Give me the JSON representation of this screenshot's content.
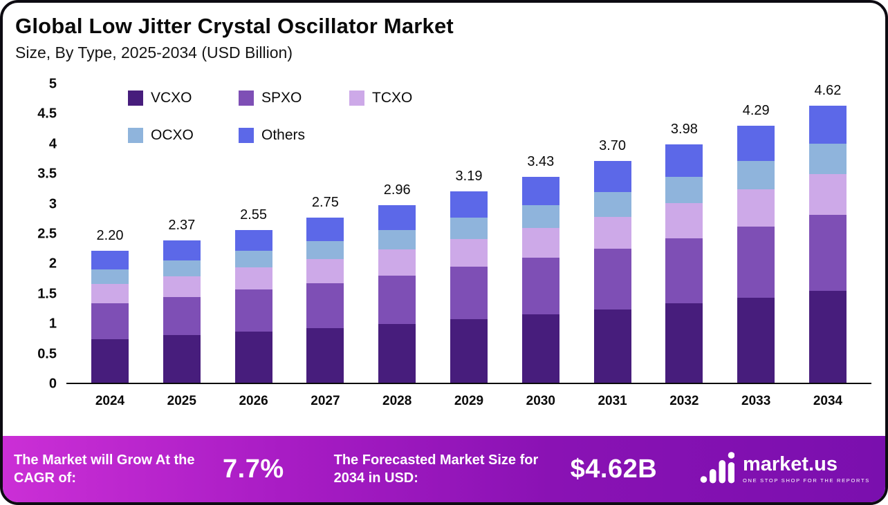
{
  "header": {
    "title": "Global Low Jitter Crystal Oscillator Market",
    "subtitle": "Size, By Type, 2025-2034 (USD Billion)"
  },
  "chart_data": {
    "type": "bar",
    "stacked": true,
    "title": "Global Low Jitter Crystal Oscillator Market Size, By Type, 2025-2034 (USD Billion)",
    "categories": [
      "2024",
      "2025",
      "2026",
      "2027",
      "2028",
      "2029",
      "2030",
      "2031",
      "2032",
      "2033",
      "2034"
    ],
    "totals": [
      2.2,
      2.37,
      2.55,
      2.75,
      2.96,
      3.19,
      3.43,
      3.7,
      3.98,
      4.29,
      4.62
    ],
    "total_labels": [
      "2.20",
      "2.37",
      "2.55",
      "2.75",
      "2.96",
      "3.19",
      "3.43",
      "3.70",
      "3.98",
      "4.29",
      "4.62"
    ],
    "series": [
      {
        "name": "VCXO",
        "color": "#471d7c",
        "values": [
          0.73,
          0.79,
          0.85,
          0.91,
          0.98,
          1.06,
          1.14,
          1.22,
          1.32,
          1.42,
          1.53
        ]
      },
      {
        "name": "SPXO",
        "color": "#7e4fb5",
        "values": [
          0.6,
          0.64,
          0.7,
          0.75,
          0.81,
          0.87,
          0.94,
          1.01,
          1.09,
          1.18,
          1.27
        ]
      },
      {
        "name": "TCXO",
        "color": "#cda9e8",
        "values": [
          0.32,
          0.35,
          0.37,
          0.4,
          0.43,
          0.47,
          0.5,
          0.54,
          0.58,
          0.63,
          0.68
        ]
      },
      {
        "name": "OCXO",
        "color": "#8fb4dc",
        "values": [
          0.24,
          0.26,
          0.28,
          0.3,
          0.33,
          0.35,
          0.38,
          0.41,
          0.44,
          0.47,
          0.51
        ]
      },
      {
        "name": "Others",
        "color": "#5c68e8",
        "values": [
          0.31,
          0.33,
          0.35,
          0.39,
          0.41,
          0.44,
          0.47,
          0.52,
          0.55,
          0.59,
          0.63
        ]
      }
    ],
    "xlabel": "",
    "ylabel": "",
    "ylim": [
      0,
      5
    ],
    "ytick_step": 0.5,
    "yticks": [
      "5",
      "4.5",
      "4",
      "3.5",
      "3",
      "2.5",
      "2",
      "1.5",
      "1",
      "0.5",
      "0"
    ],
    "legend_position": "top-left",
    "grid": false
  },
  "footer": {
    "cagr_label": "The Market will Grow At the CAGR of:",
    "cagr_value": "7.7%",
    "forecast_label": "The Forecasted Market Size for 2034 in USD:",
    "forecast_value": "$4.62B",
    "brand": "market.us",
    "brand_tagline": "ONE STOP SHOP FOR THE REPORTS"
  }
}
